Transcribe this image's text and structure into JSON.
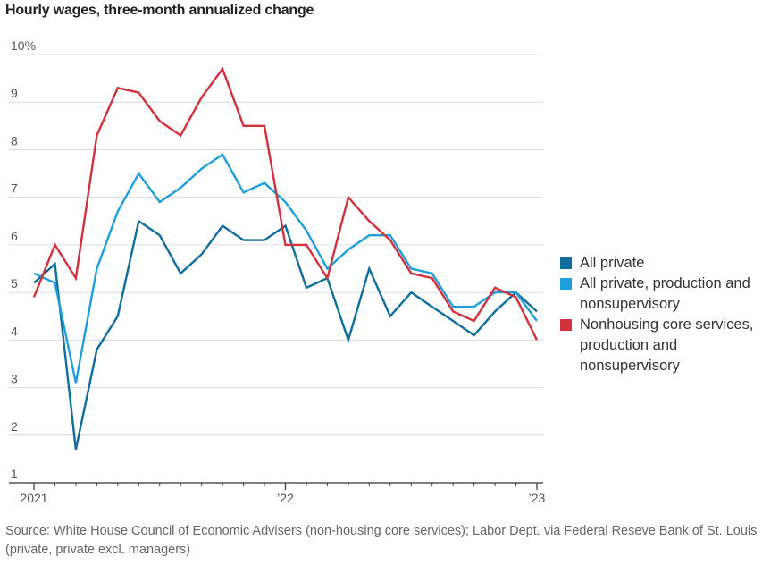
{
  "chart_data": {
    "type": "line",
    "title": "Hourly wages, three-month annualized change",
    "ylim": [
      1,
      10
    ],
    "y_ticks": [
      1,
      2,
      3,
      4,
      5,
      6,
      7,
      8,
      9,
      10
    ],
    "y_tick_labels": [
      "1",
      "2",
      "3",
      "4",
      "5",
      "6",
      "7",
      "8",
      "9",
      "10%"
    ],
    "x_ticks": [
      {
        "month_index": 0,
        "label": "2021"
      },
      {
        "month_index": 12,
        "label": "’22"
      },
      {
        "month_index": 24,
        "label": "’23"
      }
    ],
    "grid": true,
    "legend": "right",
    "series": [
      {
        "name": "All private",
        "color": "#0f6e9c",
        "values": [
          5.2,
          5.6,
          1.7,
          3.8,
          4.5,
          6.5,
          6.2,
          5.4,
          5.8,
          6.4,
          6.1,
          6.1,
          6.4,
          5.1,
          5.3,
          4.0,
          5.5,
          4.5,
          5.0,
          4.7,
          4.4,
          4.1,
          4.6,
          5.0,
          4.6
        ]
      },
      {
        "name": "All private, production and nonsupervisory",
        "color": "#1e9fdb",
        "values": [
          5.4,
          5.2,
          3.1,
          5.5,
          6.7,
          7.5,
          6.9,
          7.2,
          7.6,
          7.9,
          7.1,
          7.3,
          6.9,
          6.3,
          5.5,
          5.9,
          6.2,
          6.2,
          5.5,
          5.4,
          4.7,
          4.7,
          5.0,
          5.0,
          4.4
        ]
      },
      {
        "name": "Nonhousing core services, production and nonsupervisory",
        "color": "#d0313d",
        "values": [
          4.9,
          6.0,
          5.3,
          8.3,
          9.3,
          9.2,
          8.6,
          8.3,
          9.1,
          9.7,
          8.5,
          8.5,
          6.0,
          6.0,
          5.3,
          7.0,
          6.5,
          6.1,
          5.4,
          5.3,
          4.6,
          4.4,
          5.1,
          4.9,
          4.0
        ]
      }
    ]
  },
  "legend": {
    "items": [
      {
        "label": "All private",
        "color": "#0f6e9c"
      },
      {
        "label": "All private, production and nonsupervisory",
        "color": "#1e9fdb"
      },
      {
        "label": "Nonhousing core services, production and nonsupervisory",
        "color": "#d0313d"
      }
    ]
  },
  "source": "Source: White House Council of Economic Advisers (non-housing core services); Labor Dept. via Federal Reseve Bank of St. Louis (private, private excl. managers)"
}
